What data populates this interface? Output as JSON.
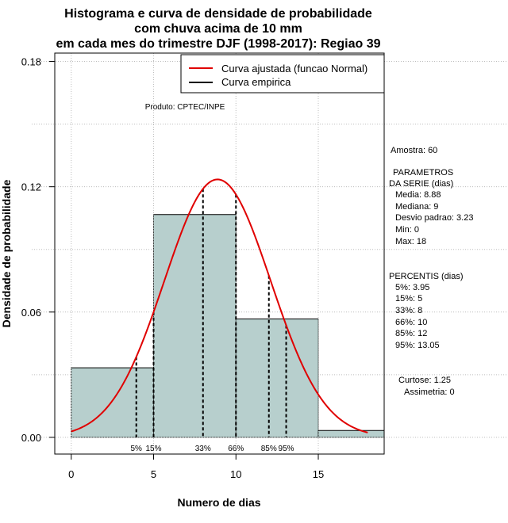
{
  "chart_data": {
    "type": "histogram",
    "title_lines": [
      "Histograma e curva de densidade de probabilidade",
      "com chuva acima de 10 mm",
      "em cada mes do trimestre DJF (1998-2017): Regiao 39"
    ],
    "xlabel": "Numero de dias",
    "ylabel": "Densidade de probabilidade",
    "xlim": [
      -1,
      19
    ],
    "ylim": [
      -0.008,
      0.184
    ],
    "x_ticks": [
      0,
      5,
      10,
      15
    ],
    "y_ticks": [
      0.0,
      0.06,
      0.12,
      0.18
    ],
    "y_tick_labels": [
      "0.00",
      "0.06",
      "0.12",
      "0.18"
    ],
    "grid": true,
    "bins": [
      {
        "start": 0,
        "end": 5,
        "density": 0.0333
      },
      {
        "start": 5,
        "end": 10,
        "density": 0.1067
      },
      {
        "start": 10,
        "end": 15,
        "density": 0.0567
      },
      {
        "start": 15,
        "end": 19,
        "density": 0.0033
      }
    ],
    "normal_fit": {
      "mean": 8.88,
      "sd": 3.23,
      "x_range": [
        0,
        18
      ]
    },
    "percentile_markers": [
      {
        "label": "5%",
        "value": 3.95
      },
      {
        "label": "15%",
        "value": 5
      },
      {
        "label": "33%",
        "value": 8
      },
      {
        "label": "66%",
        "value": 10
      },
      {
        "label": "85%",
        "value": 12
      },
      {
        "label": "95%",
        "value": 13.05
      }
    ],
    "legend": [
      {
        "label": "Curva ajustada (funcao Normal)",
        "color": "#e00000"
      },
      {
        "label": "Curva empirica",
        "color": "#000000"
      }
    ],
    "annotation": "Produto: CPTEC/INPE"
  },
  "colors": {
    "bar_fill": "#b7cfcd",
    "curve": "#e00000",
    "grid": "#bdbdbd"
  },
  "stats": {
    "sample": "Amostra: 60",
    "params_header_1": "PARAMETROS",
    "params_header_2": "DA SERIE (dias)",
    "params": [
      "Media: 8.88",
      "Mediana: 9",
      "Desvio padrao: 3.23",
      "Min: 0",
      "Max: 18"
    ],
    "percentis_header": "PERCENTIS (dias)",
    "percentis": [
      "5%: 3.95",
      "15%: 5",
      "33%: 8",
      "66%: 10",
      "85%: 12",
      "95%: 13.05"
    ],
    "curtose": "Curtose: 1.25",
    "assimetria": "Assimetria: 0"
  }
}
